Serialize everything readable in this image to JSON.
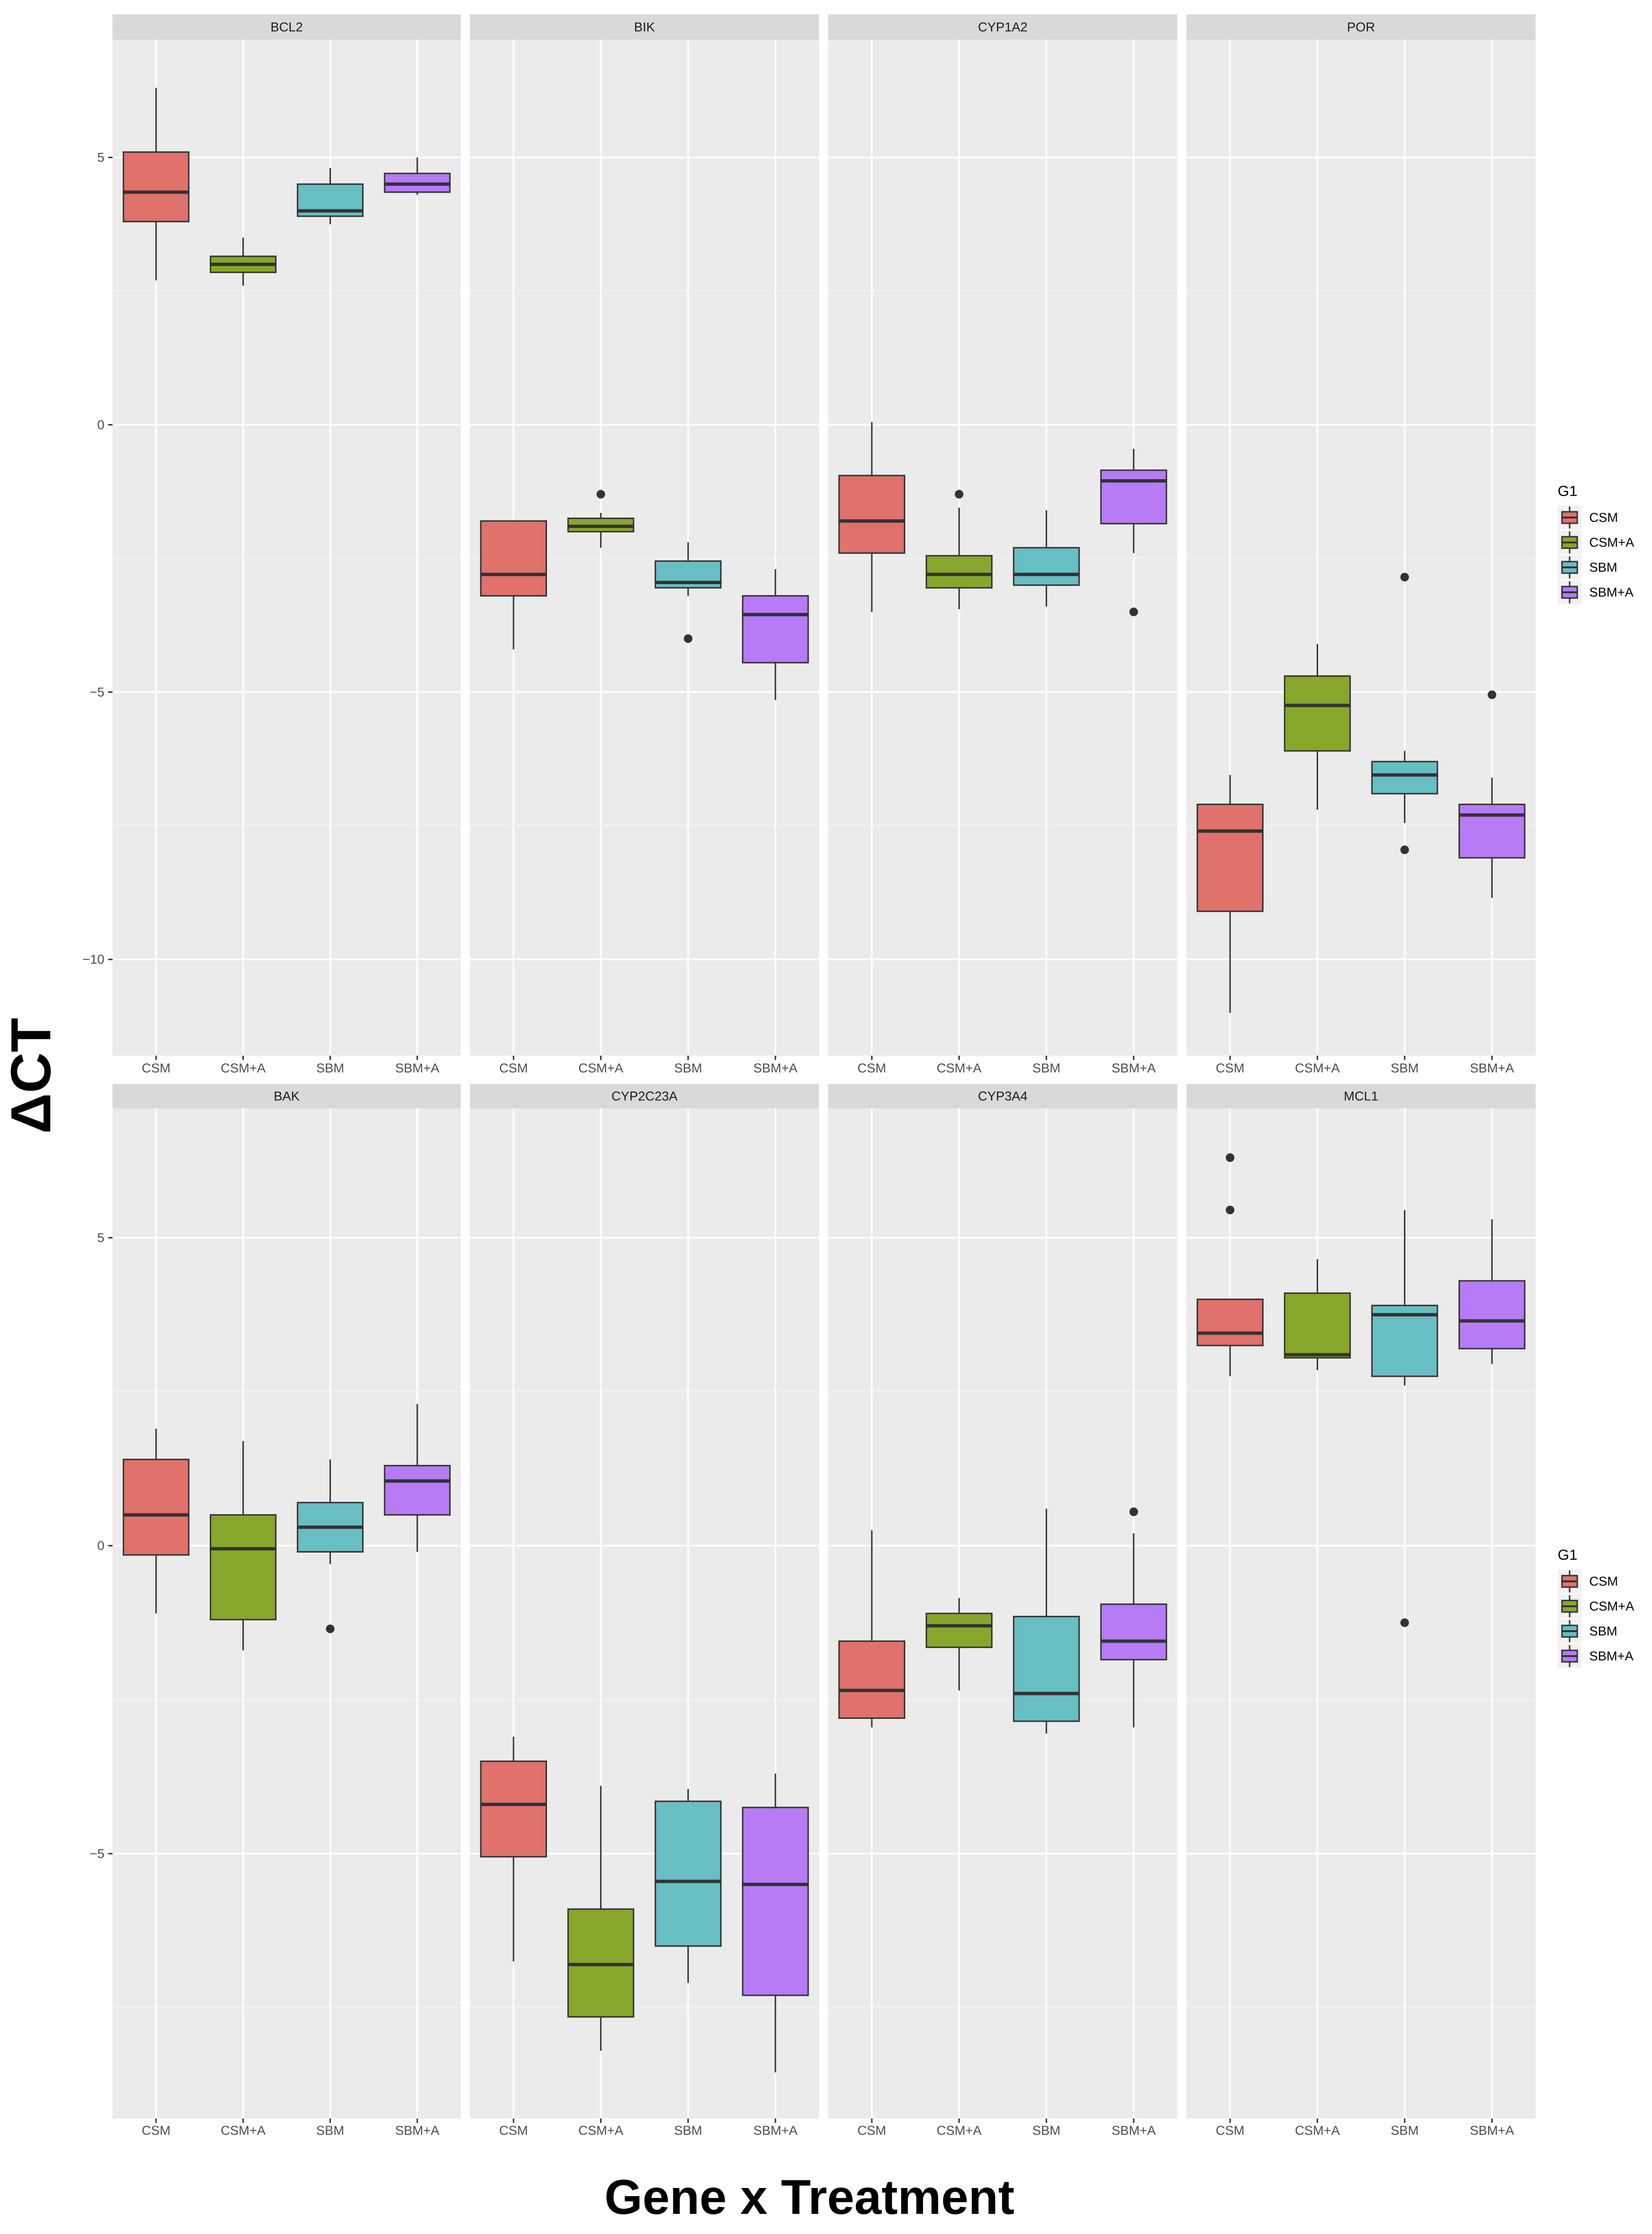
{
  "figure": {
    "ylabel": "ΔCT",
    "xlabel": "Gene x Treatment",
    "legend_title": "G1"
  },
  "colors": {
    "CSM": "#E0716B",
    "CSM+A": "#87A72B",
    "SBM": "#67BEC3",
    "SBM+A": "#B67BF5",
    "panel_bg": "#EBEBEB",
    "strip_bg": "#D9D9D9",
    "grid_major": "#FFFFFF",
    "grid_minor": "#F4F4F4"
  },
  "legends": [
    {
      "title": "G1",
      "items": [
        "CSM",
        "CSM+A",
        "SBM",
        "SBM+A"
      ]
    },
    {
      "title": "G1",
      "items": [
        "CSM",
        "CSM+A",
        "SBM",
        "SBM+A"
      ]
    }
  ],
  "chart_data": [
    {
      "type": "boxplot",
      "row": "top",
      "ylim": [
        -11.8,
        7.2
      ],
      "yticks": [
        5,
        0,
        -5,
        -10
      ],
      "categories": [
        "CSM",
        "CSM+A",
        "SBM",
        "SBM+A"
      ],
      "panels": [
        {
          "gene": "BCL2",
          "boxes": [
            {
              "group": "CSM",
              "min": 2.7,
              "q1": 3.8,
              "median": 4.35,
              "q3": 5.1,
              "max": 6.3,
              "outliers": []
            },
            {
              "group": "CSM+A",
              "min": 2.6,
              "q1": 2.85,
              "median": 3.0,
              "q3": 3.15,
              "max": 3.5,
              "outliers": []
            },
            {
              "group": "SBM",
              "min": 3.75,
              "q1": 3.9,
              "median": 4.0,
              "q3": 4.5,
              "max": 4.8,
              "outliers": []
            },
            {
              "group": "SBM+A",
              "min": 4.3,
              "q1": 4.35,
              "median": 4.5,
              "q3": 4.7,
              "max": 5.0,
              "outliers": []
            }
          ]
        },
        {
          "gene": "BIK",
          "boxes": [
            {
              "group": "CSM",
              "min": -4.2,
              "q1": -3.2,
              "median": -2.8,
              "q3": -1.8,
              "max": -1.8,
              "outliers": []
            },
            {
              "group": "CSM+A",
              "min": -2.3,
              "q1": -2.0,
              "median": -1.9,
              "q3": -1.75,
              "max": -1.65,
              "outliers": [
                -1.3
              ]
            },
            {
              "group": "SBM",
              "min": -3.2,
              "q1": -3.05,
              "median": -2.95,
              "q3": -2.55,
              "max": -2.2,
              "outliers": [
                -4.0
              ]
            },
            {
              "group": "SBM+A",
              "min": -5.15,
              "q1": -4.45,
              "median": -3.55,
              "q3": -3.2,
              "max": -2.7,
              "outliers": []
            }
          ]
        },
        {
          "gene": "CYP1A2",
          "boxes": [
            {
              "group": "CSM",
              "min": -3.5,
              "q1": -2.4,
              "median": -1.8,
              "q3": -0.95,
              "max": 0.05,
              "outliers": []
            },
            {
              "group": "CSM+A",
              "min": -3.45,
              "q1": -3.05,
              "median": -2.8,
              "q3": -2.45,
              "max": -1.55,
              "outliers": [
                -1.3
              ]
            },
            {
              "group": "SBM",
              "min": -3.4,
              "q1": -3.0,
              "median": -2.8,
              "q3": -2.3,
              "max": -1.6,
              "outliers": []
            },
            {
              "group": "SBM+A",
              "min": -2.4,
              "q1": -1.85,
              "median": -1.05,
              "q3": -0.85,
              "max": -0.45,
              "outliers": [
                -3.5
              ]
            }
          ]
        },
        {
          "gene": "POR",
          "boxes": [
            {
              "group": "CSM",
              "min": -11.0,
              "q1": -9.1,
              "median": -7.6,
              "q3": -7.1,
              "max": -6.55,
              "outliers": []
            },
            {
              "group": "CSM+A",
              "min": -7.2,
              "q1": -6.1,
              "median": -5.25,
              "q3": -4.7,
              "max": -4.1,
              "outliers": []
            },
            {
              "group": "SBM",
              "min": -7.45,
              "q1": -6.9,
              "median": -6.55,
              "q3": -6.3,
              "max": -6.1,
              "outliers": [
                -2.85,
                -7.95
              ]
            },
            {
              "group": "SBM+A",
              "min": -8.85,
              "q1": -8.1,
              "median": -7.3,
              "q3": -7.1,
              "max": -6.6,
              "outliers": [
                -5.05
              ]
            }
          ]
        }
      ]
    },
    {
      "type": "boxplot",
      "row": "bottom",
      "ylim": [
        -9.3,
        7.1
      ],
      "yticks": [
        5,
        0,
        -5
      ],
      "categories": [
        "CSM",
        "CSM+A",
        "SBM",
        "SBM+A"
      ],
      "panels": [
        {
          "gene": "BAK",
          "boxes": [
            {
              "group": "CSM",
              "min": -1.1,
              "q1": -0.15,
              "median": 0.5,
              "q3": 1.4,
              "max": 1.9,
              "outliers": []
            },
            {
              "group": "CSM+A",
              "min": -1.7,
              "q1": -1.2,
              "median": -0.05,
              "q3": 0.5,
              "max": 1.7,
              "outliers": []
            },
            {
              "group": "SBM",
              "min": -0.3,
              "q1": -0.1,
              "median": 0.3,
              "q3": 0.7,
              "max": 1.4,
              "outliers": [
                -1.35
              ]
            },
            {
              "group": "SBM+A",
              "min": -0.1,
              "q1": 0.5,
              "median": 1.05,
              "q3": 1.3,
              "max": 2.3,
              "outliers": []
            }
          ]
        },
        {
          "gene": "CYP2C23A",
          "boxes": [
            {
              "group": "CSM",
              "min": -6.75,
              "q1": -5.05,
              "median": -4.2,
              "q3": -3.5,
              "max": -3.1,
              "outliers": []
            },
            {
              "group": "CSM+A",
              "min": -8.2,
              "q1": -7.65,
              "median": -6.8,
              "q3": -5.9,
              "max": -3.9,
              "outliers": []
            },
            {
              "group": "SBM",
              "min": -7.1,
              "q1": -6.5,
              "median": -5.45,
              "q3": -4.15,
              "max": -3.95,
              "outliers": []
            },
            {
              "group": "SBM+A",
              "min": -8.55,
              "q1": -7.3,
              "median": -5.5,
              "q3": -4.25,
              "max": -3.7,
              "outliers": []
            }
          ]
        },
        {
          "gene": "CYP3A4",
          "boxes": [
            {
              "group": "CSM",
              "min": -2.95,
              "q1": -2.8,
              "median": -2.35,
              "q3": -1.55,
              "max": 0.25,
              "outliers": []
            },
            {
              "group": "CSM+A",
              "min": -2.35,
              "q1": -1.65,
              "median": -1.3,
              "q3": -1.1,
              "max": -0.85,
              "outliers": []
            },
            {
              "group": "SBM",
              "min": -3.05,
              "q1": -2.85,
              "median": -2.4,
              "q3": -1.15,
              "max": 0.6,
              "outliers": []
            },
            {
              "group": "SBM+A",
              "min": -2.95,
              "q1": -1.85,
              "median": -1.55,
              "q3": -0.95,
              "max": 0.2,
              "outliers": [
                0.55
              ]
            }
          ]
        },
        {
          "gene": "MCL1",
          "boxes": [
            {
              "group": "CSM",
              "min": 2.75,
              "q1": 3.25,
              "median": 3.45,
              "q3": 4.0,
              "max": 4.0,
              "outliers": [
                6.3,
                5.45
              ]
            },
            {
              "group": "CSM+A",
              "min": 2.85,
              "q1": 3.05,
              "median": 3.1,
              "q3": 4.1,
              "max": 4.65,
              "outliers": []
            },
            {
              "group": "SBM",
              "min": 2.6,
              "q1": 2.75,
              "median": 3.75,
              "q3": 3.9,
              "max": 5.45,
              "outliers": [
                -1.25
              ]
            },
            {
              "group": "SBM+A",
              "min": 2.95,
              "q1": 3.2,
              "median": 3.65,
              "q3": 4.3,
              "max": 5.3,
              "outliers": []
            }
          ]
        }
      ]
    }
  ]
}
